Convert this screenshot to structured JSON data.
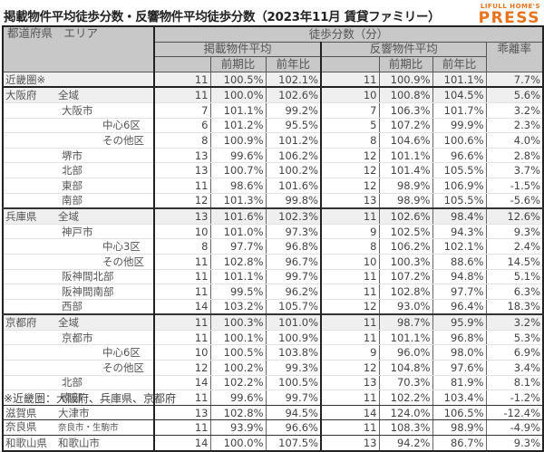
{
  "title": "掲載物件平均徒歩分数・反響物件平均徒歩分数（2023年11月 賃貸ファミリー）",
  "logo": {
    "line1": "LIFULL HOME'S",
    "line2": "PRESS",
    "color": "#e8731c"
  },
  "header": {
    "area": "都道府県　エリア",
    "main": "徒歩分数（分）",
    "listing": "掲載物件平均",
    "response": "反響物件平均",
    "gap": "乖離率",
    "qoq": "前期比",
    "yoy": "前年比"
  },
  "rows": [
    {
      "pref": "近畿圏※",
      "area": "",
      "level": 0,
      "l": "11",
      "lq": "100.5%",
      "ly": "102.1%",
      "r": "11",
      "rq": "100.9%",
      "ry": "101.1%",
      "gap": "7.7%"
    },
    {
      "pref": "大阪府",
      "area": "全域",
      "level": 0,
      "l": "11",
      "lq": "100.0%",
      "ly": "102.6%",
      "r": "10",
      "rq": "100.8%",
      "ry": "104.5%",
      "gap": "5.6%"
    },
    {
      "pref": "",
      "area": "大阪市",
      "level": 1,
      "l": "7",
      "lq": "101.1%",
      "ly": "99.2%",
      "r": "7",
      "rq": "106.3%",
      "ry": "101.7%",
      "gap": "3.2%"
    },
    {
      "pref": "",
      "area": "中心6区",
      "level": 2,
      "l": "6",
      "lq": "101.2%",
      "ly": "95.5%",
      "r": "5",
      "rq": "107.2%",
      "ry": "99.9%",
      "gap": "2.3%"
    },
    {
      "pref": "",
      "area": "その他区",
      "level": 2,
      "l": "8",
      "lq": "100.9%",
      "ly": "101.2%",
      "r": "8",
      "rq": "104.6%",
      "ry": "100.6%",
      "gap": "4.0%"
    },
    {
      "pref": "",
      "area": "堺市",
      "level": 1,
      "l": "13",
      "lq": "99.6%",
      "ly": "106.2%",
      "r": "12",
      "rq": "101.1%",
      "ry": "96.6%",
      "gap": "2.8%"
    },
    {
      "pref": "",
      "area": "北部",
      "level": 1,
      "l": "13",
      "lq": "100.7%",
      "ly": "100.2%",
      "r": "12",
      "rq": "101.4%",
      "ry": "105.5%",
      "gap": "3.7%"
    },
    {
      "pref": "",
      "area": "東部",
      "level": 1,
      "l": "11",
      "lq": "98.6%",
      "ly": "101.6%",
      "r": "12",
      "rq": "98.9%",
      "ry": "106.9%",
      "gap": "-1.5%"
    },
    {
      "pref": "",
      "area": "南部",
      "level": 1,
      "l": "12",
      "lq": "101.3%",
      "ly": "99.8%",
      "r": "13",
      "rq": "98.9%",
      "ry": "105.5%",
      "gap": "-5.6%"
    },
    {
      "pref": "兵庫県",
      "area": "全域",
      "level": 0,
      "l": "13",
      "lq": "101.6%",
      "ly": "102.3%",
      "r": "11",
      "rq": "102.6%",
      "ry": "98.4%",
      "gap": "12.6%"
    },
    {
      "pref": "",
      "area": "神戸市",
      "level": 1,
      "l": "10",
      "lq": "101.0%",
      "ly": "97.3%",
      "r": "9",
      "rq": "102.5%",
      "ry": "94.3%",
      "gap": "9.3%"
    },
    {
      "pref": "",
      "area": "中心3区",
      "level": 2,
      "l": "8",
      "lq": "97.7%",
      "ly": "96.8%",
      "r": "8",
      "rq": "106.2%",
      "ry": "102.1%",
      "gap": "2.4%"
    },
    {
      "pref": "",
      "area": "その他区",
      "level": 2,
      "l": "11",
      "lq": "102.8%",
      "ly": "96.7%",
      "r": "10",
      "rq": "100.3%",
      "ry": "88.6%",
      "gap": "14.5%"
    },
    {
      "pref": "",
      "area": "阪神間北部",
      "level": 1,
      "l": "11",
      "lq": "101.1%",
      "ly": "99.7%",
      "r": "11",
      "rq": "107.2%",
      "ry": "94.8%",
      "gap": "5.1%"
    },
    {
      "pref": "",
      "area": "阪神間南部",
      "level": 1,
      "l": "11",
      "lq": "99.5%",
      "ly": "96.2%",
      "r": "11",
      "rq": "102.8%",
      "ry": "97.7%",
      "gap": "6.3%"
    },
    {
      "pref": "",
      "area": "西部",
      "level": 1,
      "l": "14",
      "lq": "103.2%",
      "ly": "105.7%",
      "r": "12",
      "rq": "93.0%",
      "ry": "96.4%",
      "gap": "18.3%"
    },
    {
      "pref": "京都府",
      "area": "全域",
      "level": 0,
      "l": "11",
      "lq": "100.3%",
      "ly": "101.0%",
      "r": "11",
      "rq": "98.7%",
      "ry": "95.9%",
      "gap": "3.2%"
    },
    {
      "pref": "",
      "area": "京都市",
      "level": 1,
      "l": "11",
      "lq": "100.1%",
      "ly": "100.9%",
      "r": "11",
      "rq": "101.1%",
      "ry": "96.8%",
      "gap": "5.3%"
    },
    {
      "pref": "",
      "area": "中心6区",
      "level": 2,
      "l": "10",
      "lq": "100.5%",
      "ly": "103.8%",
      "r": "9",
      "rq": "96.0%",
      "ry": "98.0%",
      "gap": "6.9%"
    },
    {
      "pref": "",
      "area": "その他区",
      "level": 2,
      "l": "12",
      "lq": "100.2%",
      "ly": "99.3%",
      "r": "12",
      "rq": "104.8%",
      "ry": "97.6%",
      "gap": "3.4%"
    },
    {
      "pref": "",
      "area": "北部",
      "level": 1,
      "l": "14",
      "lq": "102.2%",
      "ly": "100.5%",
      "r": "13",
      "rq": "70.3%",
      "ry": "81.9%",
      "gap": "8.1%"
    },
    {
      "pref": "",
      "area": "南部",
      "level": 1,
      "l": "11",
      "lq": "99.6%",
      "ly": "99.7%",
      "r": "11",
      "rq": "102.2%",
      "ry": "103.4%",
      "gap": "-1.2%"
    },
    {
      "pref": "滋賀県",
      "area": "大津市",
      "level": 0,
      "l": "13",
      "lq": "102.8%",
      "ly": "94.5%",
      "r": "14",
      "rq": "124.0%",
      "ry": "106.5%",
      "gap": "-12.4%"
    },
    {
      "pref": "奈良県",
      "area": "奈良市・生駒市",
      "level": 0,
      "l": "11",
      "lq": "93.9%",
      "ly": "96.6%",
      "r": "11",
      "rq": "108.3%",
      "ry": "98.9%",
      "gap": "-4.9%"
    },
    {
      "pref": "和歌山県",
      "area": "和歌山市",
      "level": 0,
      "l": "14",
      "lq": "100.0%",
      "ly": "107.5%",
      "r": "13",
      "rq": "94.2%",
      "ry": "86.7%",
      "gap": "9.3%"
    }
  ],
  "footnote": "※近畿圏：大阪府、兵庫県、京都府"
}
